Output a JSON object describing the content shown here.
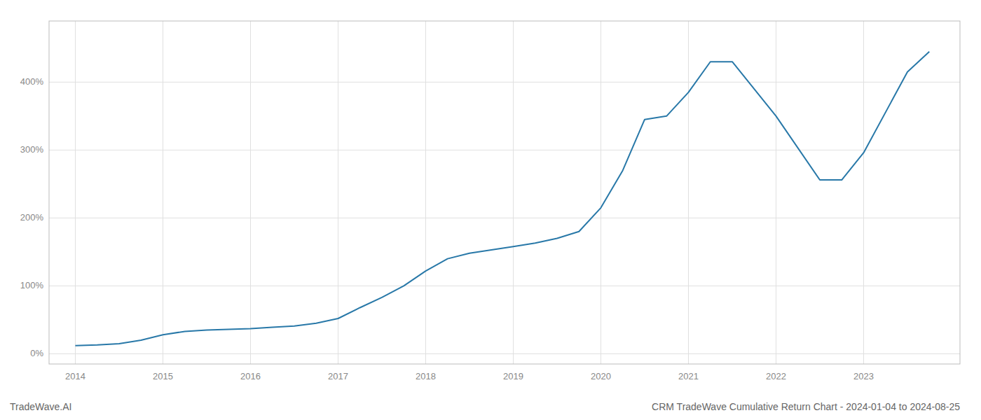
{
  "chart_data": {
    "type": "line",
    "title": "CRM TradeWave Cumulative Return Chart - 2024-01-04 to 2024-08-25",
    "annotations": [
      "TradeWave.AI"
    ],
    "x": [
      2014.0,
      2014.25,
      2014.5,
      2014.75,
      2015.0,
      2015.25,
      2015.5,
      2015.75,
      2016.0,
      2016.25,
      2016.5,
      2016.75,
      2017.0,
      2017.25,
      2017.5,
      2017.75,
      2018.0,
      2018.25,
      2018.5,
      2018.75,
      2019.0,
      2019.25,
      2019.5,
      2019.75,
      2020.0,
      2020.25,
      2020.5,
      2020.75,
      2021.0,
      2021.25,
      2021.5,
      2022.0,
      2022.5,
      2022.75,
      2023.0,
      2023.5,
      2023.75
    ],
    "values": [
      12,
      13,
      15,
      20,
      28,
      33,
      35,
      36,
      37,
      39,
      41,
      45,
      52,
      68,
      83,
      100,
      122,
      140,
      148,
      153,
      158,
      163,
      170,
      180,
      215,
      270,
      345,
      350,
      385,
      430,
      430,
      350,
      256,
      256,
      296,
      415,
      445
    ],
    "color": "#2878a8",
    "xlim": [
      2013.7,
      2024.1
    ],
    "xticks": [
      2014,
      2015,
      2016,
      2017,
      2018,
      2019,
      2020,
      2021,
      2022,
      2023
    ],
    "ylim": [
      -15,
      490
    ],
    "yticks": [
      {
        "value": 0,
        "label": "0%"
      },
      {
        "value": 100,
        "label": "100%"
      },
      {
        "value": 200,
        "label": "200%"
      },
      {
        "value": 300,
        "label": "300%"
      },
      {
        "value": 400,
        "label": "400%"
      }
    ],
    "grid": true
  }
}
